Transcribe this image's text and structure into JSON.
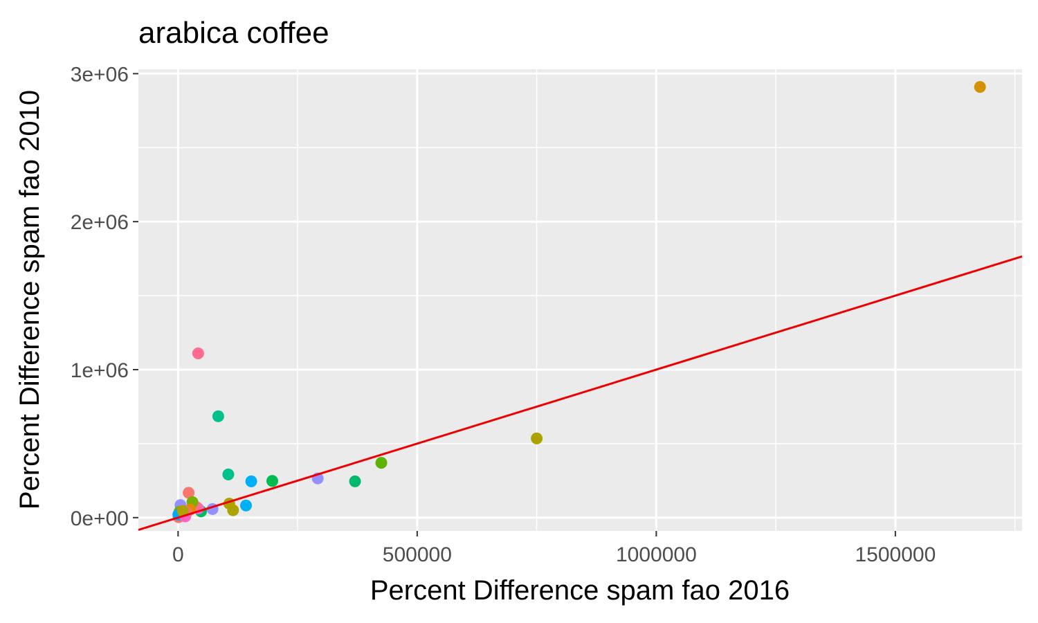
{
  "chart_data": {
    "type": "scatter",
    "title": "arabica coffee",
    "xlabel": "Percent Difference spam fao 2016",
    "ylabel": "Percent Difference spam fao 2010",
    "xlim": [
      -83000,
      1765000
    ],
    "ylim": [
      -90000,
      3030000
    ],
    "x_ticks": [
      0,
      500000,
      1000000,
      1500000
    ],
    "x_tick_labels": [
      "0",
      "500000",
      "1000000",
      "1500000"
    ],
    "y_ticks": [
      0,
      1000000,
      2000000,
      3000000
    ],
    "y_tick_labels": [
      "0e+00",
      "1e+06",
      "2e+06",
      "3e+06"
    ],
    "grid": true,
    "legend": "none",
    "reference_line": {
      "type": "identity",
      "slope": 1,
      "intercept": 0,
      "color": "#ee0000"
    },
    "colors": {
      "panel_background": "#ebebeb",
      "grid": "#ffffff",
      "line": "#ee0000"
    },
    "points": [
      {
        "x": 1677000,
        "y": 2910000,
        "color": "#d39200"
      },
      {
        "x": 750000,
        "y": 535000,
        "color": "#aea200"
      },
      {
        "x": 425000,
        "y": 370000,
        "color": "#5eb300"
      },
      {
        "x": 370000,
        "y": 245000,
        "color": "#00ba6c"
      },
      {
        "x": 292000,
        "y": 265000,
        "color": "#9590ff"
      },
      {
        "x": 197000,
        "y": 248000,
        "color": "#00bb4e"
      },
      {
        "x": 153000,
        "y": 245000,
        "color": "#00b0f6"
      },
      {
        "x": 142000,
        "y": 82000,
        "color": "#00b0f6"
      },
      {
        "x": 105000,
        "y": 292000,
        "color": "#00c08b"
      },
      {
        "x": 84000,
        "y": 685000,
        "color": "#00c08b"
      },
      {
        "x": 42000,
        "y": 1110000,
        "color": "#ff6c91"
      },
      {
        "x": 22000,
        "y": 168000,
        "color": "#f8766d"
      },
      {
        "x": 115000,
        "y": 50000,
        "color": "#aea200"
      },
      {
        "x": 107000,
        "y": 95000,
        "color": "#aea200"
      },
      {
        "x": 72000,
        "y": 58000,
        "color": "#9590ff"
      },
      {
        "x": 48000,
        "y": 42000,
        "color": "#00bd5c"
      },
      {
        "x": 42000,
        "y": 62000,
        "color": "#e76bf3"
      },
      {
        "x": 38000,
        "y": 72000,
        "color": "#ff6c91"
      },
      {
        "x": 30000,
        "y": 105000,
        "color": "#7cae00"
      },
      {
        "x": 25000,
        "y": 55000,
        "color": "#e58700"
      },
      {
        "x": 18000,
        "y": 35000,
        "color": "#f8766d"
      },
      {
        "x": 12000,
        "y": 22000,
        "color": "#00bfc4"
      },
      {
        "x": 8000,
        "y": 60000,
        "color": "#c77cff"
      },
      {
        "x": 5000,
        "y": 85000,
        "color": "#9590ff"
      },
      {
        "x": 3000,
        "y": 40000,
        "color": "#7cae00"
      },
      {
        "x": 2000,
        "y": 10000,
        "color": "#ff62bc"
      },
      {
        "x": 1000,
        "y": 3000,
        "color": "#f8766d"
      },
      {
        "x": 500,
        "y": 20000,
        "color": "#00a9ff"
      },
      {
        "x": 15000,
        "y": 8000,
        "color": "#ff61c3"
      },
      {
        "x": 10000,
        "y": 45000,
        "color": "#aea200"
      }
    ]
  }
}
